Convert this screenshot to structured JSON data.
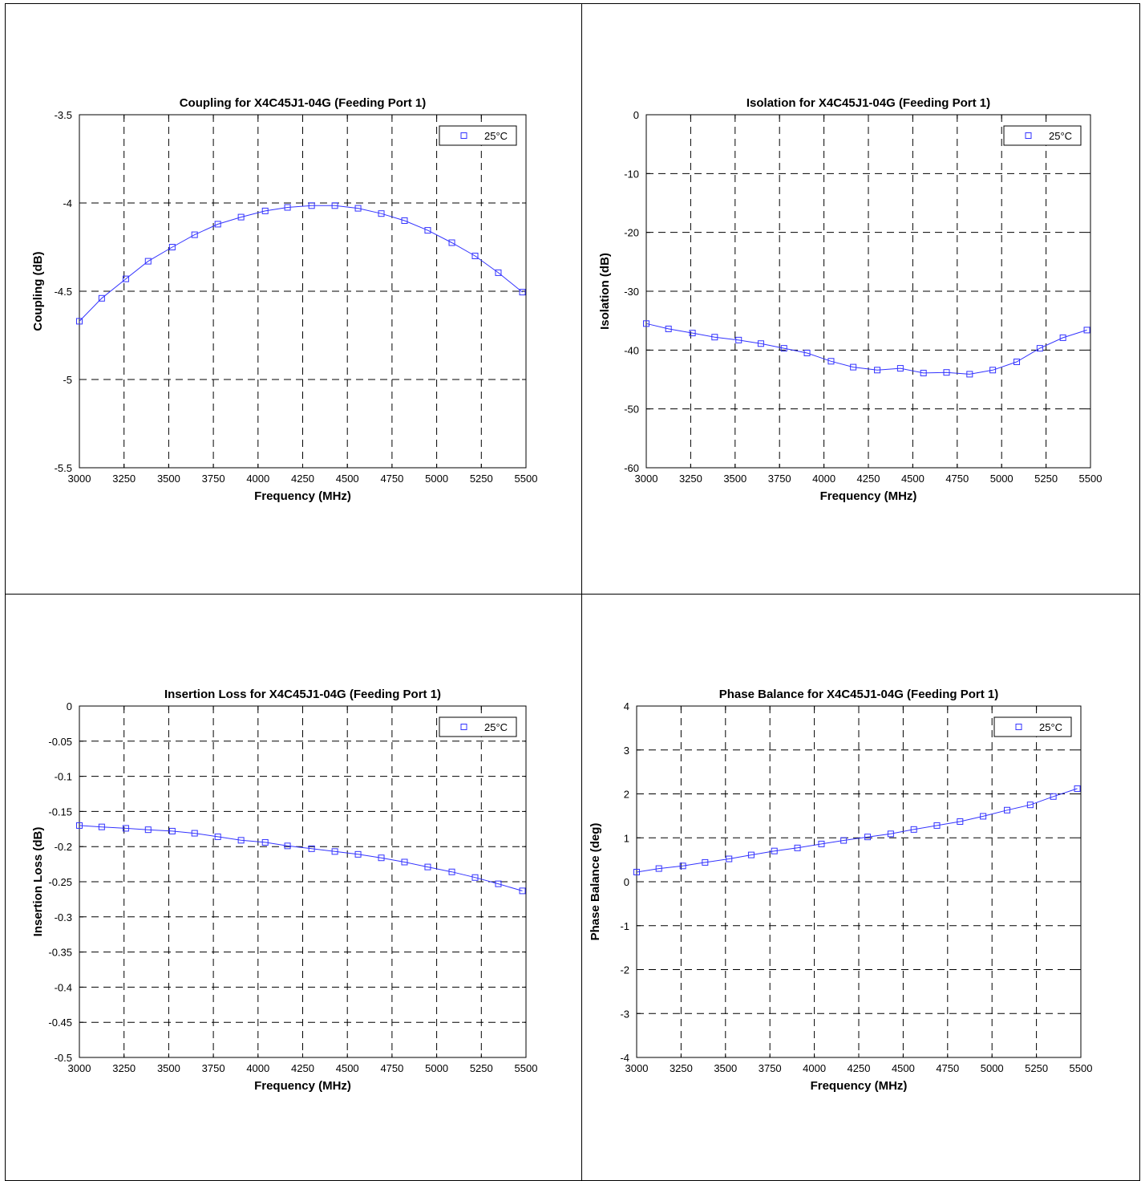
{
  "chart_data": [
    {
      "type": "line",
      "title": "Coupling for X4C45J1-04G (Feeding Port 1)",
      "xlabel": "Frequency (MHz)",
      "ylabel": "Coupling (dB)",
      "xlim": [
        3000,
        5500
      ],
      "ylim": [
        -5.5,
        -3.5
      ],
      "xticks": [
        3000,
        3250,
        3500,
        3750,
        4000,
        4250,
        4500,
        4750,
        5000,
        5250,
        5500
      ],
      "yticks": [
        -5.5,
        -5,
        -4.5,
        -4,
        -3.5
      ],
      "ytick_labels": [
        "-5.5",
        "-5",
        "-4.5",
        "-4",
        "-3.5"
      ],
      "grid": true,
      "legend": "top-right",
      "series": [
        {
          "name": "25°C",
          "color": "#3333ff",
          "marker": "square",
          "x": [
            3000,
            3125,
            3260,
            3385,
            3520,
            3645,
            3775,
            3905,
            4040,
            4165,
            4300,
            4430,
            4560,
            4690,
            4820,
            4950,
            5085,
            5215,
            5345,
            5480
          ],
          "y": [
            -4.67,
            -4.54,
            -4.43,
            -4.33,
            -4.25,
            -4.18,
            -4.12,
            -4.08,
            -4.045,
            -4.025,
            -4.015,
            -4.015,
            -4.03,
            -4.06,
            -4.1,
            -4.155,
            -4.225,
            -4.3,
            -4.395,
            -4.505
          ]
        }
      ]
    },
    {
      "type": "line",
      "title": "Isolation for X4C45J1-04G (Feeding Port 1)",
      "xlabel": "Frequency (MHz)",
      "ylabel": "Isolation (dB)",
      "xlim": [
        3000,
        5500
      ],
      "ylim": [
        -60,
        0
      ],
      "xticks": [
        3000,
        3250,
        3500,
        3750,
        4000,
        4250,
        4500,
        4750,
        5000,
        5250,
        5500
      ],
      "yticks": [
        -60,
        -50,
        -40,
        -30,
        -20,
        -10,
        0
      ],
      "ytick_labels": [
        "-60",
        "-50",
        "-40",
        "-30",
        "-20",
        "-10",
        "0"
      ],
      "grid": true,
      "legend": "top-right",
      "series": [
        {
          "name": "25°C",
          "color": "#3333ff",
          "marker": "square",
          "x": [
            3000,
            3125,
            3260,
            3385,
            3520,
            3645,
            3775,
            3905,
            4040,
            4165,
            4300,
            4430,
            4560,
            4690,
            4820,
            4950,
            5085,
            5215,
            5345,
            5480
          ],
          "y": [
            -35.5,
            -36.4,
            -37.1,
            -37.8,
            -38.3,
            -38.9,
            -39.7,
            -40.5,
            -41.9,
            -42.9,
            -43.4,
            -43.1,
            -43.9,
            -43.8,
            -44.1,
            -43.4,
            -42.0,
            -39.7,
            -37.9,
            -36.6
          ]
        }
      ]
    },
    {
      "type": "line",
      "title": "Insertion Loss for X4C45J1-04G (Feeding Port 1)",
      "xlabel": "Frequency (MHz)",
      "ylabel": "Insertion Loss (dB)",
      "xlim": [
        3000,
        5500
      ],
      "ylim": [
        -0.5,
        0
      ],
      "xticks": [
        3000,
        3250,
        3500,
        3750,
        4000,
        4250,
        4500,
        4750,
        5000,
        5250,
        5500
      ],
      "yticks": [
        -0.5,
        -0.45,
        -0.4,
        -0.35,
        -0.3,
        -0.25,
        -0.2,
        -0.15,
        -0.1,
        -0.05,
        0
      ],
      "ytick_labels": [
        "-0.5",
        "-0.45",
        "-0.4",
        "-0.35",
        "-0.3",
        "-0.25",
        "-0.2",
        "-0.15",
        "-0.1",
        "-0.05",
        "0"
      ],
      "grid": true,
      "legend": "top-right",
      "series": [
        {
          "name": "25°C",
          "color": "#3333ff",
          "marker": "square",
          "x": [
            3000,
            3125,
            3260,
            3385,
            3520,
            3645,
            3775,
            3905,
            4040,
            4165,
            4300,
            4430,
            4560,
            4690,
            4820,
            4950,
            5085,
            5215,
            5345,
            5480
          ],
          "y": [
            -0.17,
            -0.172,
            -0.174,
            -0.176,
            -0.178,
            -0.181,
            -0.186,
            -0.191,
            -0.194,
            -0.199,
            -0.203,
            -0.207,
            -0.211,
            -0.216,
            -0.222,
            -0.229,
            -0.236,
            -0.244,
            -0.253,
            -0.263
          ]
        }
      ]
    },
    {
      "type": "line",
      "title": "Phase Balance for X4C45J1-04G (Feeding Port 1)",
      "xlabel": "Frequency (MHz)",
      "ylabel": "Phase Balance (deg)",
      "xlim": [
        3000,
        5500
      ],
      "ylim": [
        -4,
        4
      ],
      "xticks": [
        3000,
        3250,
        3500,
        3750,
        4000,
        4250,
        4500,
        4750,
        5000,
        5250,
        5500
      ],
      "yticks": [
        -4,
        -3,
        -2,
        -1,
        0,
        1,
        2,
        3,
        4
      ],
      "ytick_labels": [
        "-4",
        "-3",
        "-2",
        "-1",
        "0",
        "1",
        "2",
        "3",
        "4"
      ],
      "grid": true,
      "legend": "top-right",
      "series": [
        {
          "name": "25°C",
          "color": "#3333ff",
          "marker": "square",
          "x": [
            3000,
            3125,
            3260,
            3385,
            3520,
            3645,
            3775,
            3905,
            4040,
            4165,
            4300,
            4430,
            4560,
            4690,
            4820,
            4950,
            5085,
            5215,
            5345,
            5480
          ],
          "y": [
            0.22,
            0.3,
            0.36,
            0.44,
            0.52,
            0.61,
            0.7,
            0.77,
            0.86,
            0.94,
            1.02,
            1.09,
            1.19,
            1.28,
            1.37,
            1.49,
            1.63,
            1.75,
            1.94,
            2.12
          ]
        }
      ]
    }
  ]
}
